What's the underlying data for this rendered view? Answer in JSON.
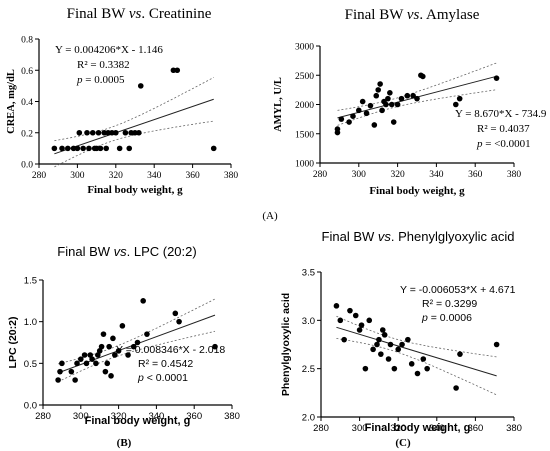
{
  "panel_labels": {
    "A": "(A)",
    "B": "(B)",
    "C": "(C)"
  },
  "chart_data": [
    {
      "id": "crea",
      "type": "scatter",
      "title_parts": [
        "Final BW ",
        "vs",
        ". Creatinine"
      ],
      "xlabel": "Final body weight, g",
      "ylabel": "CREA, mg/dL",
      "xlim": [
        280,
        380
      ],
      "ylim": [
        0.0,
        0.8
      ],
      "xticks": [
        "280",
        "300",
        "320",
        "340",
        "360",
        "380"
      ],
      "yticks": [
        "0.0",
        "0.2",
        "0.4",
        "0.6",
        "0.8"
      ],
      "annotation": [
        "Y = 0.004206*X - 1.146",
        "R² = 0.3382",
        "p = 0.0005"
      ],
      "regression": {
        "slope": 0.004206,
        "intercept": -1.146
      },
      "points": [
        [
          288,
          0.1
        ],
        [
          292,
          0.1
        ],
        [
          295,
          0.1
        ],
        [
          298,
          0.1
        ],
        [
          300,
          0.1
        ],
        [
          301,
          0.2
        ],
        [
          303,
          0.1
        ],
        [
          305,
          0.2
        ],
        [
          306,
          0.1
        ],
        [
          308,
          0.2
        ],
        [
          309,
          0.1
        ],
        [
          310,
          0.1
        ],
        [
          311,
          0.2
        ],
        [
          312,
          0.1
        ],
        [
          314,
          0.2
        ],
        [
          315,
          0.1
        ],
        [
          316,
          0.2
        ],
        [
          318,
          0.2
        ],
        [
          320,
          0.2
        ],
        [
          322,
          0.1
        ],
        [
          325,
          0.2
        ],
        [
          327,
          0.1
        ],
        [
          328,
          0.2
        ],
        [
          330,
          0.2
        ],
        [
          332,
          0.2
        ],
        [
          333,
          0.5
        ],
        [
          350,
          0.6
        ],
        [
          352,
          0.6
        ],
        [
          371,
          0.1
        ]
      ]
    },
    {
      "id": "amyl",
      "type": "scatter",
      "title_parts": [
        "Final BW ",
        "vs",
        ". Amylase"
      ],
      "xlabel": "Final body weight, g",
      "ylabel": "AMYL, U/L",
      "xlim": [
        280,
        380
      ],
      "ylim": [
        1000,
        3000
      ],
      "xticks": [
        "280",
        "300",
        "320",
        "340",
        "360",
        "380"
      ],
      "yticks": [
        "1000",
        "1500",
        "2000",
        "2500",
        "3000"
      ],
      "annotation": [
        "Y = 8.670*X - 734.9",
        "R² = 0.4037",
        "p = <0.0001"
      ],
      "regression": {
        "slope": 8.67,
        "intercept": -734.9
      },
      "points": [
        [
          289,
          1520
        ],
        [
          289,
          1580
        ],
        [
          291,
          1750
        ],
        [
          295,
          1700
        ],
        [
          297,
          1800
        ],
        [
          300,
          1900
        ],
        [
          302,
          2050
        ],
        [
          304,
          1850
        ],
        [
          306,
          1980
        ],
        [
          308,
          1650
        ],
        [
          309,
          2150
        ],
        [
          310,
          2250
        ],
        [
          311,
          2350
        ],
        [
          312,
          1900
        ],
        [
          313,
          2050
        ],
        [
          314,
          2000
        ],
        [
          315,
          2100
        ],
        [
          316,
          2200
        ],
        [
          317,
          2000
        ],
        [
          318,
          1700
        ],
        [
          320,
          2000
        ],
        [
          322,
          2100
        ],
        [
          325,
          2150
        ],
        [
          328,
          2150
        ],
        [
          330,
          2100
        ],
        [
          332,
          2500
        ],
        [
          333,
          2480
        ],
        [
          350,
          2000
        ],
        [
          352,
          2100
        ],
        [
          371,
          2450
        ]
      ]
    },
    {
      "id": "lpc",
      "type": "scatter",
      "title_parts": [
        "Final BW ",
        "vs",
        ". LPC (20:2)"
      ],
      "xlabel": "Final body weight, g",
      "ylabel": "LPC (20:2)",
      "xlim": [
        280,
        380
      ],
      "ylim": [
        0.0,
        1.5
      ],
      "xticks": [
        "280",
        "300",
        "320",
        "340",
        "360",
        "380"
      ],
      "yticks": [
        "0.0",
        "0.5",
        "1.0",
        "1.5"
      ],
      "annotation": [
        "Y = 0.008346*X - 2.018",
        "R² = 0.4542",
        "p < 0.0001"
      ],
      "regression": {
        "slope": 0.008346,
        "intercept": -2.018
      },
      "points": [
        [
          288,
          0.3
        ],
        [
          289,
          0.4
        ],
        [
          290,
          0.5
        ],
        [
          295,
          0.4
        ],
        [
          297,
          0.3
        ],
        [
          298,
          0.5
        ],
        [
          300,
          0.55
        ],
        [
          302,
          0.6
        ],
        [
          303,
          0.5
        ],
        [
          305,
          0.6
        ],
        [
          306,
          0.55
        ],
        [
          308,
          0.5
        ],
        [
          309,
          0.6
        ],
        [
          310,
          0.65
        ],
        [
          311,
          0.7
        ],
        [
          312,
          0.85
        ],
        [
          313,
          0.4
        ],
        [
          314,
          0.5
        ],
        [
          315,
          0.7
        ],
        [
          316,
          0.35
        ],
        [
          317,
          0.8
        ],
        [
          318,
          0.6
        ],
        [
          320,
          0.65
        ],
        [
          322,
          0.95
        ],
        [
          325,
          0.6
        ],
        [
          328,
          0.7
        ],
        [
          330,
          0.75
        ],
        [
          333,
          1.25
        ],
        [
          335,
          0.85
        ],
        [
          350,
          1.1
        ],
        [
          352,
          1.0
        ],
        [
          371,
          0.7
        ]
      ]
    },
    {
      "id": "phenyl",
      "type": "scatter",
      "title_parts": [
        "Final BW ",
        "vs",
        ". Phenylglyoxylic acid"
      ],
      "xlabel": "Final body weight, g",
      "ylabel": "Phenylglyoxylic acid",
      "xlim": [
        280,
        380
      ],
      "ylim": [
        2.0,
        3.5
      ],
      "xticks": [
        "280",
        "300",
        "320",
        "340",
        "360",
        "380"
      ],
      "yticks": [
        "2.0",
        "2.5",
        "3.0",
        "3.5"
      ],
      "annotation": [
        "Y = -0.006053*X + 4.671",
        "R² = 0.3299",
        "p = 0.0006"
      ],
      "regression": {
        "slope": -0.006053,
        "intercept": 4.671
      },
      "points": [
        [
          288,
          3.15
        ],
        [
          290,
          3.0
        ],
        [
          292,
          2.8
        ],
        [
          295,
          3.1
        ],
        [
          298,
          3.05
        ],
        [
          300,
          2.9
        ],
        [
          301,
          2.95
        ],
        [
          303,
          2.5
        ],
        [
          305,
          3.0
        ],
        [
          307,
          2.7
        ],
        [
          309,
          2.75
        ],
        [
          310,
          2.8
        ],
        [
          311,
          2.65
        ],
        [
          312,
          2.9
        ],
        [
          313,
          2.85
        ],
        [
          315,
          2.6
        ],
        [
          316,
          2.75
        ],
        [
          318,
          2.5
        ],
        [
          320,
          2.7
        ],
        [
          322,
          2.75
        ],
        [
          325,
          2.8
        ],
        [
          327,
          2.55
        ],
        [
          330,
          2.45
        ],
        [
          333,
          2.6
        ],
        [
          335,
          2.5
        ],
        [
          350,
          2.3
        ],
        [
          352,
          2.65
        ],
        [
          371,
          2.75
        ]
      ]
    }
  ]
}
